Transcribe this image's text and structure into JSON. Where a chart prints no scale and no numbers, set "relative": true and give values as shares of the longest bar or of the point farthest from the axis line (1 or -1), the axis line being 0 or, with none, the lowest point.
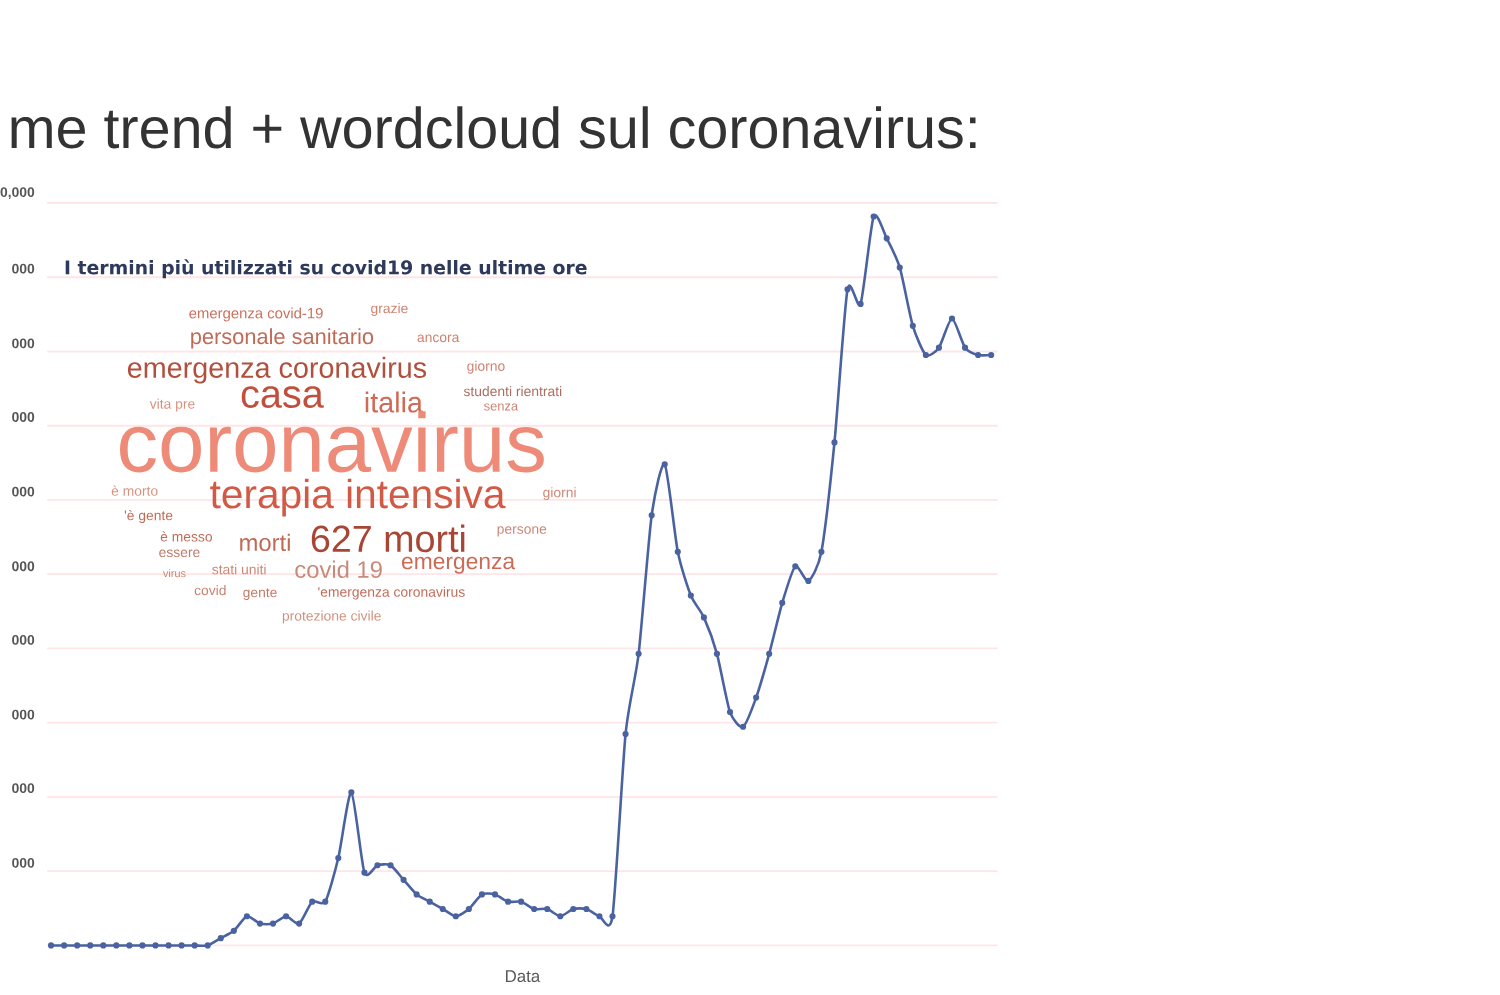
{
  "chart_data": {
    "type": "line",
    "title": "me trend + wordcloud sul coronavirus:",
    "xlabel": "Data",
    "relative": true,
    "categories": [
      null,
      null,
      null,
      null,
      null,
      null,
      null,
      null,
      null,
      null,
      null,
      null,
      null,
      null,
      null,
      null,
      null,
      null,
      null,
      null,
      null,
      null,
      null,
      null,
      null,
      null,
      null,
      null,
      null,
      null,
      null,
      null,
      null,
      null,
      null,
      null,
      null,
      null,
      null,
      null,
      null,
      null,
      null,
      null,
      null,
      null,
      null,
      null,
      null,
      null,
      null,
      null,
      null,
      null,
      null,
      null,
      null,
      null,
      null,
      null,
      null,
      null,
      null,
      null,
      null,
      null,
      null,
      null,
      null,
      null,
      null,
      null,
      null
    ],
    "series": [
      {
        "color": "#4a63a0",
        "values": [
          0,
          0,
          0,
          0,
          0,
          0,
          0,
          0,
          0,
          0,
          0,
          0,
          0,
          0.01,
          0.02,
          0.04,
          0.03,
          0.03,
          0.04,
          0.03,
          0.06,
          0.06,
          0.12,
          0.21,
          0.1,
          0.11,
          0.11,
          0.09,
          0.07,
          0.06,
          0.05,
          0.04,
          0.05,
          0.07,
          0.07,
          0.06,
          0.06,
          0.05,
          0.05,
          0.04,
          0.05,
          0.05,
          0.04,
          0.04,
          0.29,
          0.4,
          0.59,
          0.66,
          0.54,
          0.48,
          0.45,
          0.4,
          0.32,
          0.3,
          0.34,
          0.4,
          0.47,
          0.52,
          0.5,
          0.54,
          0.69,
          0.9,
          0.88,
          1,
          0.97,
          0.93,
          0.85,
          0.81,
          0.82,
          0.86,
          0.82,
          0.81,
          0.81
        ]
      }
    ],
    "grid": "y",
    "marker": "circle",
    "annotations": [
      "0,000",
      "000",
      "000",
      "000",
      "000",
      "000",
      "000",
      "000",
      "000",
      "000",
      "I termini più utilizzati su covid19 nelle ultime ore",
      "emergenza covid-19",
      "grazie",
      "personale sanitario",
      "ancora",
      "emergenza coronavirus",
      "giorno",
      "studenti rientrati",
      "vita pre",
      "casa",
      "italia",
      "senza",
      "coronavirus",
      "è morto",
      "terapia intensiva",
      "giorni",
      "'è gente",
      "è messo",
      "essere",
      "morti",
      "627 morti",
      "persone",
      "virus",
      "stati uniti",
      "covid 19",
      "emergenza",
      "covid",
      "gente",
      "'emergenza coronavirus",
      "protezione civile"
    ]
  }
}
